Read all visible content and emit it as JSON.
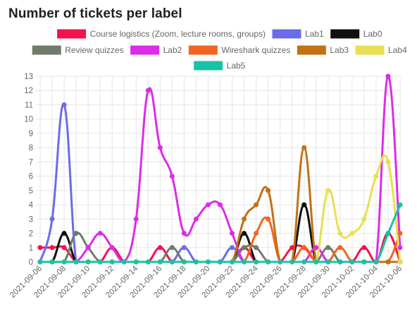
{
  "title": "Number of tickets per label",
  "chart_data": {
    "type": "line",
    "x": [
      "2021-09-06",
      "2021-09-07",
      "2021-09-08",
      "2021-09-09",
      "2021-09-10",
      "2021-09-11",
      "2021-09-12",
      "2021-09-13",
      "2021-09-14",
      "2021-09-15",
      "2021-09-16",
      "2021-09-17",
      "2021-09-18",
      "2021-09-19",
      "2021-09-20",
      "2021-09-21",
      "2021-09-22",
      "2021-09-23",
      "2021-09-24",
      "2021-09-25",
      "2021-09-26",
      "2021-09-27",
      "2021-09-28",
      "2021-09-29",
      "2021-09-30",
      "2021-10-01",
      "2021-10-02",
      "2021-10-03",
      "2021-10-04",
      "2021-10-05",
      "2021-10-06"
    ],
    "xtick_labels": [
      "2021-09-06",
      "2021-09-08",
      "2021-09-10",
      "2021-09-12",
      "2021-09-14",
      "2021-09-16",
      "2021-09-18",
      "2021-09-20",
      "2021-09-22",
      "2021-09-24",
      "2021-09-26",
      "2021-09-28",
      "2021-09-30",
      "2021-10-02",
      "2021-10-04",
      "2021-10-06"
    ],
    "ylim": [
      0,
      13
    ],
    "yticks": [
      0,
      1,
      2,
      3,
      4,
      5,
      6,
      7,
      8,
      9,
      10,
      11,
      12,
      13
    ],
    "grid": true,
    "legend_position": "top",
    "series": [
      {
        "name": "Course logistics (Zoom, lecture rooms, groups)",
        "color": "#f2134c",
        "values": [
          1,
          1,
          1,
          0,
          0,
          0,
          1,
          0,
          0,
          0,
          1,
          0,
          0,
          0,
          0,
          0,
          0,
          1,
          0,
          0,
          0,
          1,
          1,
          0,
          0,
          0,
          0,
          1,
          0,
          2,
          0
        ]
      },
      {
        "name": "Lab1",
        "color": "#6b6bea",
        "values": [
          0,
          3,
          11,
          0,
          0,
          0,
          0,
          0,
          0,
          0,
          0,
          0,
          1,
          0,
          0,
          0,
          1,
          0,
          0,
          0,
          0,
          0,
          0,
          0,
          0,
          0,
          0,
          0,
          0,
          0,
          0
        ]
      },
      {
        "name": "Lab0",
        "color": "#111111",
        "values": [
          0,
          0,
          2,
          0,
          0,
          0,
          0,
          0,
          0,
          0,
          0,
          0,
          0,
          0,
          0,
          0,
          0,
          2,
          0,
          0,
          0,
          0,
          4,
          0,
          0,
          0,
          0,
          0,
          0,
          0,
          0
        ]
      },
      {
        "name": "Review quizzes",
        "color": "#6d7d6a",
        "values": [
          0,
          0,
          0,
          2,
          1,
          0,
          0,
          0,
          0,
          0,
          0,
          1,
          0,
          0,
          0,
          0,
          0,
          1,
          1,
          0,
          0,
          0,
          0,
          0,
          1,
          0,
          0,
          0,
          0,
          0,
          0
        ]
      },
      {
        "name": "Lab2",
        "color": "#dd2be8",
        "values": [
          0,
          0,
          0,
          0,
          1,
          2,
          1,
          0,
          3,
          12,
          8,
          6,
          2,
          3,
          4,
          4,
          2,
          0,
          0,
          0,
          0,
          0,
          0,
          1,
          0,
          0,
          0,
          0,
          0,
          13,
          1
        ]
      },
      {
        "name": "Wireshark quizzes",
        "color": "#f26522",
        "values": [
          0,
          0,
          0,
          0,
          0,
          0,
          0,
          0,
          0,
          0,
          0,
          0,
          0,
          0,
          0,
          0,
          0,
          0,
          2,
          3,
          0,
          0,
          1,
          0,
          0,
          1,
          0,
          0,
          0,
          0,
          2
        ]
      },
      {
        "name": "Lab3",
        "color": "#c27114",
        "values": [
          0,
          0,
          0,
          0,
          0,
          0,
          0,
          0,
          0,
          0,
          0,
          0,
          0,
          0,
          0,
          0,
          0,
          3,
          4,
          5,
          0,
          0,
          8,
          0,
          0,
          0,
          0,
          0,
          0,
          0,
          0
        ]
      },
      {
        "name": "Lab4",
        "color": "#e8e050",
        "values": [
          0,
          0,
          0,
          0,
          0,
          0,
          0,
          0,
          0,
          0,
          0,
          0,
          0,
          0,
          0,
          0,
          0,
          0,
          0,
          0,
          0,
          0,
          0,
          0,
          5,
          2,
          2,
          3,
          6,
          7,
          0
        ]
      },
      {
        "name": "Lab5",
        "color": "#16c3a4",
        "values": [
          0,
          0,
          0,
          0,
          0,
          0,
          0,
          0,
          0,
          0,
          0,
          0,
          0,
          0,
          0,
          0,
          0,
          0,
          0,
          0,
          0,
          0,
          0,
          0,
          0,
          0,
          0,
          0,
          0,
          2,
          4
        ]
      }
    ]
  }
}
